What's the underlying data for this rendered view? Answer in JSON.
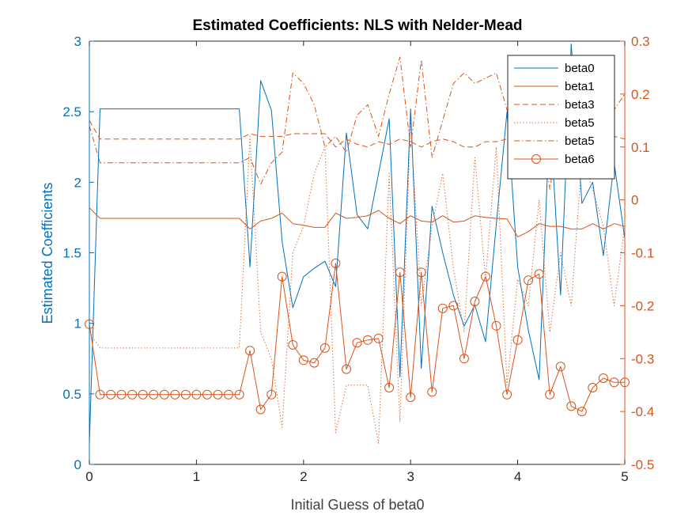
{
  "chart_data": {
    "type": "line",
    "title": "Estimated Coefficients: NLS with Nelder-Mead",
    "xlabel": "Initial Guess of beta0",
    "ylabel_left": "Estimated Coefficients",
    "ylabel_right": "",
    "xlim": [
      0,
      5
    ],
    "ylim_left": [
      0,
      3
    ],
    "ylim_right": [
      -0.5,
      0.3
    ],
    "x_ticks": [
      "0",
      "1",
      "2",
      "3",
      "4",
      "5"
    ],
    "y_ticks_left": [
      "0",
      "0.5",
      "1",
      "1.5",
      "2",
      "2.5",
      "3"
    ],
    "y_ticks_right": [
      "-0.5",
      "-0.4",
      "-0.3",
      "-0.2",
      "-0.1",
      "0",
      "0.1",
      "0.2",
      "0.3"
    ],
    "grid": false,
    "legend_position": "top-right",
    "colors": {
      "left": "#0072BD",
      "right": "#D95319"
    },
    "x": [
      0,
      0.1,
      0.2,
      0.3,
      0.4,
      0.5,
      0.6,
      0.7,
      0.8,
      0.9,
      1.0,
      1.1,
      1.2,
      1.3,
      1.4,
      1.5,
      1.6,
      1.7,
      1.8,
      1.9,
      2.0,
      2.1,
      2.2,
      2.3,
      2.4,
      2.5,
      2.6,
      2.7,
      2.8,
      2.9,
      3.0,
      3.1,
      3.2,
      3.3,
      3.4,
      3.5,
      3.6,
      3.7,
      3.8,
      3.9,
      4.0,
      4.1,
      4.2,
      4.3,
      4.4,
      4.5,
      4.6,
      4.7,
      4.8,
      4.9,
      5.0
    ],
    "series": [
      {
        "name": "beta0",
        "axis": "left",
        "style": "solid",
        "marker": "none",
        "values": [
          0.15,
          2.52,
          2.52,
          2.52,
          2.52,
          2.52,
          2.52,
          2.52,
          2.52,
          2.52,
          2.52,
          2.52,
          2.52,
          2.52,
          2.52,
          1.4,
          2.72,
          2.51,
          1.58,
          1.11,
          1.33,
          1.39,
          1.44,
          1.26,
          2.35,
          1.77,
          1.67,
          2.06,
          2.45,
          0.62,
          2.52,
          0.68,
          1.83,
          1.5,
          1.2,
          0.98,
          1.13,
          0.87,
          1.7,
          2.5,
          1.4,
          0.95,
          0.6,
          2.48,
          1.2,
          2.98,
          1.85,
          2.0,
          1.48,
          2.14,
          1.6
        ]
      },
      {
        "name": "beta1",
        "axis": "right",
        "style": "solid",
        "marker": "none",
        "values": [
          -0.015,
          -0.035,
          -0.035,
          -0.035,
          -0.035,
          -0.035,
          -0.035,
          -0.035,
          -0.035,
          -0.035,
          -0.035,
          -0.035,
          -0.035,
          -0.035,
          -0.035,
          -0.055,
          -0.04,
          -0.035,
          -0.025,
          -0.045,
          -0.048,
          -0.052,
          -0.052,
          -0.025,
          -0.035,
          -0.033,
          -0.03,
          -0.02,
          -0.035,
          -0.045,
          -0.03,
          -0.04,
          -0.042,
          -0.03,
          -0.042,
          -0.04,
          -0.03,
          -0.033,
          -0.035,
          -0.036,
          -0.07,
          -0.06,
          -0.045,
          -0.05,
          -0.05,
          -0.055,
          -0.055,
          -0.045,
          -0.055,
          -0.045,
          -0.05
        ]
      },
      {
        "name": "beta3",
        "axis": "right",
        "style": "dashed",
        "marker": "none",
        "values": [
          0.15,
          0.115,
          0.115,
          0.115,
          0.115,
          0.115,
          0.115,
          0.115,
          0.115,
          0.115,
          0.115,
          0.115,
          0.115,
          0.115,
          0.115,
          0.125,
          0.12,
          0.12,
          0.12,
          0.125,
          0.125,
          0.125,
          0.125,
          0.1,
          0.115,
          0.105,
          0.1,
          0.11,
          0.105,
          0.115,
          0.11,
          0.1,
          0.11,
          0.115,
          0.11,
          0.1,
          0.1,
          0.11,
          0.11,
          0.115,
          0.115,
          0.12,
          0.11,
          0.115,
          0.115,
          0.105,
          0.13,
          0.15,
          0.14,
          0.12,
          0.115
        ]
      },
      {
        "name": "beta5",
        "axis": "right",
        "style": "dotted",
        "marker": "none",
        "values": [
          -0.25,
          -0.28,
          -0.28,
          -0.28,
          -0.28,
          -0.28,
          -0.28,
          -0.28,
          -0.28,
          -0.28,
          -0.28,
          -0.28,
          -0.28,
          -0.28,
          -0.28,
          0.12,
          -0.25,
          -0.3,
          -0.43,
          -0.1,
          -0.05,
          0.05,
          0.1,
          -0.44,
          -0.35,
          -0.35,
          -0.35,
          -0.46,
          0.05,
          -0.42,
          0.15,
          -0.2,
          -0.05,
          0.05,
          -0.13,
          -0.25,
          0.08,
          -0.15,
          0.1,
          -0.35,
          -0.15,
          -0.2,
          0.0,
          -0.25,
          -0.1,
          -0.2,
          0.08,
          0.02,
          -0.05,
          -0.2,
          -0.05
        ]
      },
      {
        "name": "beta5",
        "axis": "right",
        "style": "dashdot",
        "marker": "none",
        "values": [
          0.14,
          0.07,
          0.07,
          0.07,
          0.07,
          0.07,
          0.07,
          0.07,
          0.07,
          0.07,
          0.07,
          0.07,
          0.07,
          0.07,
          0.07,
          0.08,
          0.03,
          0.07,
          0.09,
          0.24,
          0.22,
          0.18,
          0.1,
          0.12,
          0.09,
          0.16,
          0.18,
          0.12,
          0.2,
          0.27,
          0.1,
          0.265,
          0.08,
          0.15,
          0.22,
          0.24,
          0.22,
          0.23,
          0.24,
          0.17,
          0.12,
          0.1,
          0.17,
          0.02,
          0.15,
          0.1,
          0.21,
          0.11,
          0.15,
          0.17,
          0.2
        ]
      },
      {
        "name": "beta6",
        "axis": "right",
        "style": "solid",
        "marker": "circle",
        "values": [
          -0.235,
          -0.368,
          -0.368,
          -0.368,
          -0.368,
          -0.368,
          -0.368,
          -0.368,
          -0.368,
          -0.368,
          -0.368,
          -0.368,
          -0.368,
          -0.368,
          -0.368,
          -0.285,
          -0.396,
          -0.368,
          -0.145,
          -0.274,
          -0.303,
          -0.308,
          -0.28,
          -0.12,
          -0.32,
          -0.27,
          -0.265,
          -0.262,
          -0.355,
          -0.137,
          -0.373,
          -0.137,
          -0.363,
          -0.205,
          -0.2,
          -0.3,
          -0.192,
          -0.145,
          -0.238,
          -0.368,
          -0.265,
          -0.152,
          -0.14,
          -0.368,
          -0.315,
          -0.39,
          -0.4,
          -0.355,
          -0.337,
          -0.345,
          -0.345
        ]
      }
    ]
  }
}
